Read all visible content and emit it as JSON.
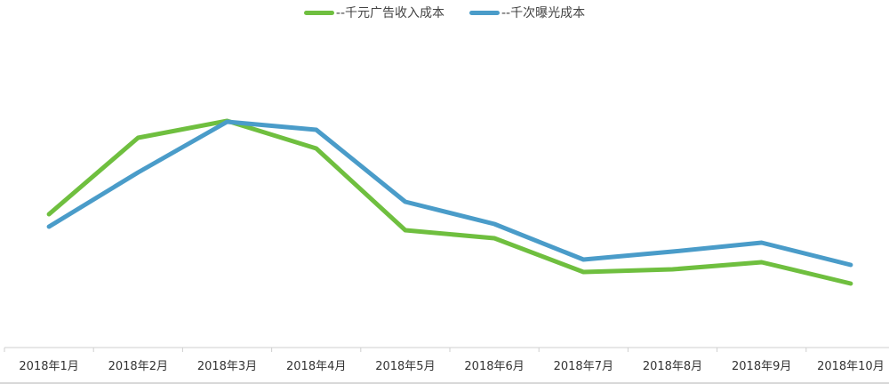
{
  "legend": [
    {
      "label": "--千元广告收入成本",
      "color": "#6fbf3f"
    },
    {
      "label": "--千次曝光成本",
      "color": "#4a9cc9"
    }
  ],
  "chart_data": {
    "type": "line",
    "title": "",
    "categories": [
      "2018年1月",
      "2018年2月",
      "2018年3月",
      "2018年4月",
      "2018年5月",
      "2018年6月",
      "2018年7月",
      "2018年8月",
      "2018年9月",
      "2018年10月"
    ],
    "series": [
      {
        "name": "--千元广告收入成本",
        "color": "#6fbf3f",
        "values": [
          150,
          236,
          255,
          224,
          132,
          123,
          85,
          88,
          96,
          72
        ]
      },
      {
        "name": "--千次曝光成本",
        "color": "#4a9cc9",
        "values": [
          136,
          197,
          254,
          245,
          164,
          139,
          99,
          108,
          118,
          93
        ]
      }
    ],
    "xlabel": "",
    "ylabel": "",
    "ylim": [
      0,
      391
    ],
    "y_axis_visible": false,
    "grid": false,
    "legend_position": "top"
  }
}
